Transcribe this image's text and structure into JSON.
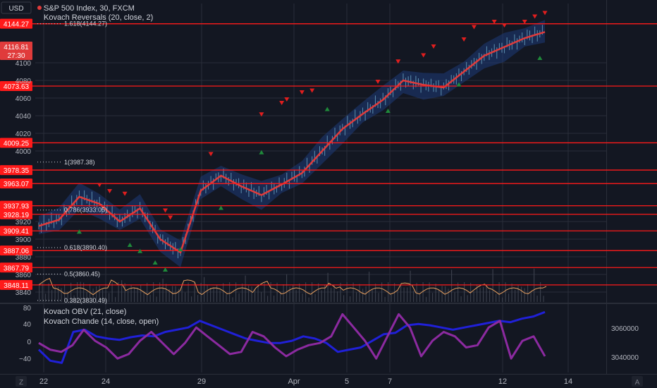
{
  "header": {
    "currency": "USD",
    "symbol_line": "S&P 500 Index, 30, FXCM",
    "indicator_line": "Kovach Reversals (20, close, 2)",
    "lower_indicator_1": "Kovach OBV (21, close)",
    "lower_indicator_2": "Kovach Chande (14, close, open)"
  },
  "current_price": {
    "value": "4116.81",
    "countdown": "27:30"
  },
  "colors": {
    "background": "#131722",
    "grid": "#2a2e39",
    "level_line": "#ff1a1a",
    "price_line": "#e03b3b",
    "band": "#1e3a78",
    "candles": "#5c8fb0",
    "obv": "#2020d8",
    "chande": "#8c2aa0",
    "oscillator": "#e8a060",
    "buy": "#1f8a3a",
    "sell": "#e01e1e"
  },
  "footer": {
    "left_button": "Z",
    "right_button": "A"
  },
  "chart_data": [
    {
      "type": "line",
      "title": "S&P 500 Index, 30, FXCM",
      "xlabel": "",
      "ylabel": "",
      "x_tick_labels": [
        "22",
        "24",
        "29",
        "Apr",
        "5",
        "7",
        "12",
        "14"
      ],
      "y_tick_labels": [
        "4100",
        "4080",
        "4060",
        "4040",
        "4020",
        "4000",
        "3920",
        "3900",
        "3880",
        "3860",
        "3840"
      ],
      "ylim": [
        3828,
        4152
      ],
      "grid": true,
      "horizontal_levels": [
        {
          "label": "4144.27",
          "value": 4144.27
        },
        {
          "label": "4073.63",
          "value": 4073.63
        },
        {
          "label": "4009.25",
          "value": 4009.25
        },
        {
          "label": "3978.35",
          "value": 3978.35
        },
        {
          "label": "3963.07",
          "value": 3963.07
        },
        {
          "label": "3937.93",
          "value": 3937.93
        },
        {
          "label": "3928.19",
          "value": 3928.19
        },
        {
          "label": "3909.41",
          "value": 3909.41
        },
        {
          "label": "3887.06",
          "value": 3887.06
        },
        {
          "label": "3867.79",
          "value": 3867.79
        },
        {
          "label": "3848.11",
          "value": 3848.11
        }
      ],
      "fibonacci": [
        {
          "label": "1.618(4144.27)",
          "value": 4144.27
        },
        {
          "label": "1(3987.38)",
          "value": 3987.38
        },
        {
          "label": "0.786(3933.05)",
          "value": 3933.05
        },
        {
          "label": "0.618(3890.40)",
          "value": 3890.4
        },
        {
          "label": "0.5(3860.45)",
          "value": 3860.45
        },
        {
          "label": "0.382(3830.49)",
          "value": 3830.49
        }
      ],
      "series": [
        {
          "x_index": [
            0,
            4,
            8,
            12,
            16,
            20,
            24,
            28,
            32,
            36,
            40,
            44,
            48,
            52,
            56,
            60,
            64,
            68,
            72,
            76,
            80,
            84,
            88,
            92,
            96,
            100
          ],
          "values": [
            3915,
            3922,
            3948,
            3940,
            3920,
            3935,
            3900,
            3885,
            3955,
            3972,
            3960,
            3950,
            3962,
            3975,
            4000,
            4025,
            4042,
            4058,
            4080,
            4075,
            4072,
            4090,
            4108,
            4118,
            4128,
            4135
          ]
        }
      ],
      "signals": {
        "sell_x_index": [
          12,
          14,
          17,
          25,
          26,
          34,
          44,
          48,
          49,
          52,
          54,
          67,
          71,
          76,
          78,
          84,
          86,
          90,
          92,
          96,
          98,
          100
        ],
        "sell_values": [
          3955,
          3948,
          3945,
          3926,
          3918,
          3990,
          4035,
          4048,
          4052,
          4060,
          4062,
          4072,
          4095,
          4102,
          4112,
          4120,
          4134,
          4140,
          4136,
          4140,
          4146,
          4150
        ],
        "buy_x_index": [
          8,
          18,
          20,
          23,
          25,
          28,
          36,
          44,
          57,
          69,
          83,
          99
        ],
        "buy_values": [
          3915,
          3900,
          3893,
          3880,
          3872,
          3895,
          3942,
          4005,
          4054,
          4052,
          4082,
          4112
        ]
      }
    },
    {
      "type": "line",
      "title": "Kovach OBV (21, close) / Kovach Chande (14, close, open)",
      "x_tick_labels": [
        "22",
        "24",
        "29",
        "Apr",
        "5",
        "7",
        "12",
        "14"
      ],
      "y_left_tick_labels": [
        "80",
        "40",
        "0",
        "−40"
      ],
      "y_right_tick_labels": [
        "3060000",
        "3040000"
      ],
      "left_ylim": [
        -60,
        85
      ],
      "series": [
        {
          "values": [
            -10,
            -35,
            -40,
            30,
            35,
            20,
            15,
            12,
            18,
            22,
            20,
            30,
            35,
            40,
            55,
            45,
            35,
            25,
            15,
            10,
            5,
            5,
            10,
            20,
            15,
            5,
            -15,
            -10,
            -5,
            10,
            25,
            28,
            45,
            48,
            45,
            40,
            35,
            40,
            45,
            50,
            55,
            52,
            60,
            65,
            75
          ]
        },
        {
          "values": [
            5,
            -10,
            -15,
            0,
            35,
            10,
            -5,
            -30,
            -20,
            10,
            30,
            5,
            -20,
            5,
            40,
            20,
            0,
            -20,
            -15,
            30,
            20,
            -5,
            -25,
            -10,
            0,
            5,
            20,
            70,
            40,
            10,
            -30,
            20,
            70,
            40,
            -25,
            10,
            30,
            20,
            -5,
            0,
            40,
            55,
            -30,
            10,
            20,
            -25
          ]
        }
      ]
    }
  ]
}
